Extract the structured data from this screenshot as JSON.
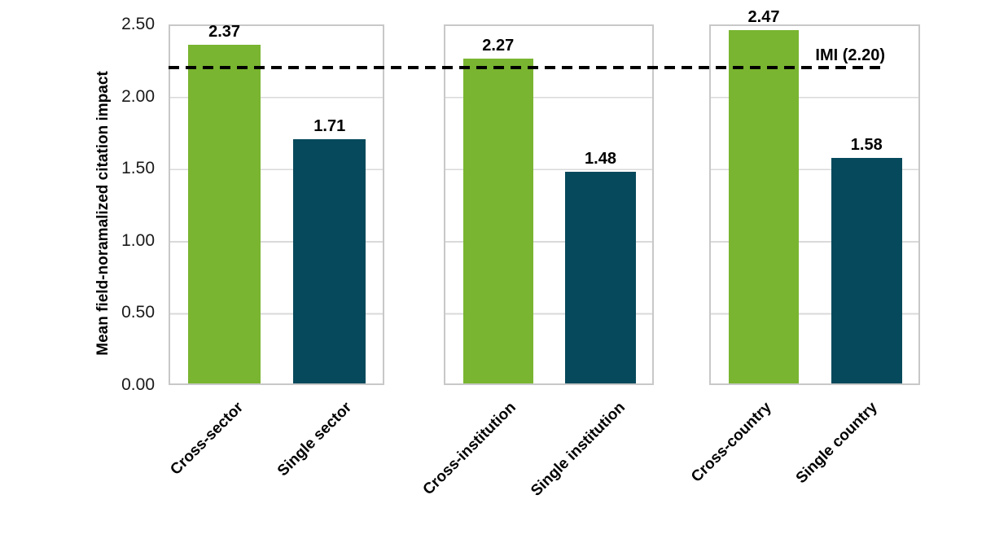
{
  "chart_data": {
    "type": "bar",
    "title": "",
    "xlabel": "",
    "ylabel": "Mean field-noramalized citation impact",
    "ylim": [
      0,
      2.5
    ],
    "grid": "horizontal",
    "legend": "none",
    "y_ticks": [
      {
        "label": "2.50",
        "value": 2.5
      },
      {
        "label": "2.00",
        "value": 2.0
      },
      {
        "label": "1.50",
        "value": 1.5
      },
      {
        "label": "1.00",
        "value": 1.0
      },
      {
        "label": "0.50",
        "value": 0.5
      },
      {
        "label": "0.00",
        "value": 0.0
      }
    ],
    "reference_line": {
      "label": "IMI (2.20)",
      "value": 2.2,
      "style": "dashed",
      "color": "#000000"
    },
    "series_colors": {
      "cross": "#79b530",
      "single": "#06495c"
    },
    "groups": [
      {
        "bars": [
          {
            "category": "Cross-sector",
            "value": 2.37,
            "label": "2.37",
            "color": "#79b530"
          },
          {
            "category": "Single sector",
            "value": 1.71,
            "label": "1.71",
            "color": "#06495c"
          }
        ]
      },
      {
        "bars": [
          {
            "category": "Cross-institution",
            "value": 2.27,
            "label": "2.27",
            "color": "#79b530"
          },
          {
            "category": "Single institution",
            "value": 1.48,
            "label": "1.48",
            "color": "#06495c"
          }
        ]
      },
      {
        "bars": [
          {
            "category": "Cross-country",
            "value": 2.47,
            "label": "2.47",
            "color": "#79b530"
          },
          {
            "category": "Single country",
            "value": 1.58,
            "label": "1.58",
            "color": "#06495c"
          }
        ]
      }
    ]
  }
}
